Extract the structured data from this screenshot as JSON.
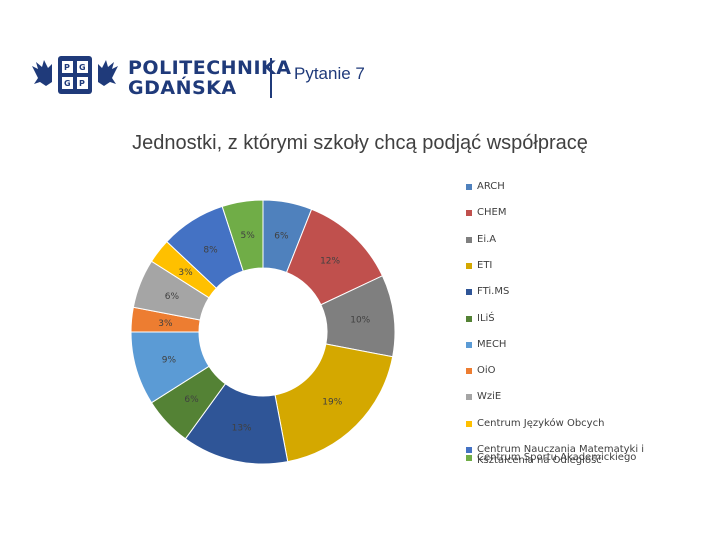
{
  "header": {
    "logo_line1": "POLITECHNIKA",
    "logo_line2": "GDAŃSKA",
    "question": "Pytanie 7"
  },
  "chart_data": {
    "type": "pie",
    "variant": "donut",
    "title": "Jednostki, z którymi szkoły chcą podjąć współpracę",
    "legend_position": "right",
    "slices": [
      {
        "name": "ARCH",
        "value": 6,
        "label": "6%",
        "color": "#4f81bd"
      },
      {
        "name": "CHEM",
        "value": 12,
        "label": "12%",
        "color": "#c0504d"
      },
      {
        "name": "Ei.A",
        "value": 10,
        "label": "10%",
        "color": "#7f7f7f"
      },
      {
        "name": "ETI",
        "value": 19,
        "label": "19%",
        "color": "#d4a800"
      },
      {
        "name": "FTiMS",
        "value": 13,
        "label": "13%",
        "color": "#2f5597"
      },
      {
        "name": "ILiŚ",
        "value": 6,
        "label": "6%",
        "color": "#548235"
      },
      {
        "name": "MECH",
        "value": 9,
        "label": "9%",
        "color": "#5b9bd5"
      },
      {
        "name": "OiO",
        "value": 3,
        "label": "3%",
        "color": "#ed7d31"
      },
      {
        "name": "WziE",
        "value": 6,
        "label": "6%",
        "color": "#a5a5a5"
      },
      {
        "name": "Centrum Języków Obcych",
        "value": 3,
        "label": "3%",
        "color": "#ffc000"
      },
      {
        "name": "Centrum Nauczania Matematyki i Kształcenia na Odległość",
        "value": 8,
        "label": "8%",
        "color": "#4472c4"
      },
      {
        "name": "Centrum Sportu Akademickiego",
        "value": 5,
        "label": "5%",
        "color": "#70ad47"
      }
    ],
    "legend_lines": [
      [
        "ARCH"
      ],
      [
        "CHEM"
      ],
      [
        "Ei.A"
      ],
      [
        "ETI"
      ],
      [
        "FTi.MS"
      ],
      [
        "ILiŚ"
      ],
      [
        "MECH"
      ],
      [
        "OiO"
      ],
      [
        "WziE"
      ],
      [
        "Centrum Języków Obcych"
      ],
      [
        "Centrum Nauczania Matematyki i",
        "Kształcenia na Odległość"
      ],
      [
        "Centrum Sportu Akademickiego"
      ]
    ]
  }
}
